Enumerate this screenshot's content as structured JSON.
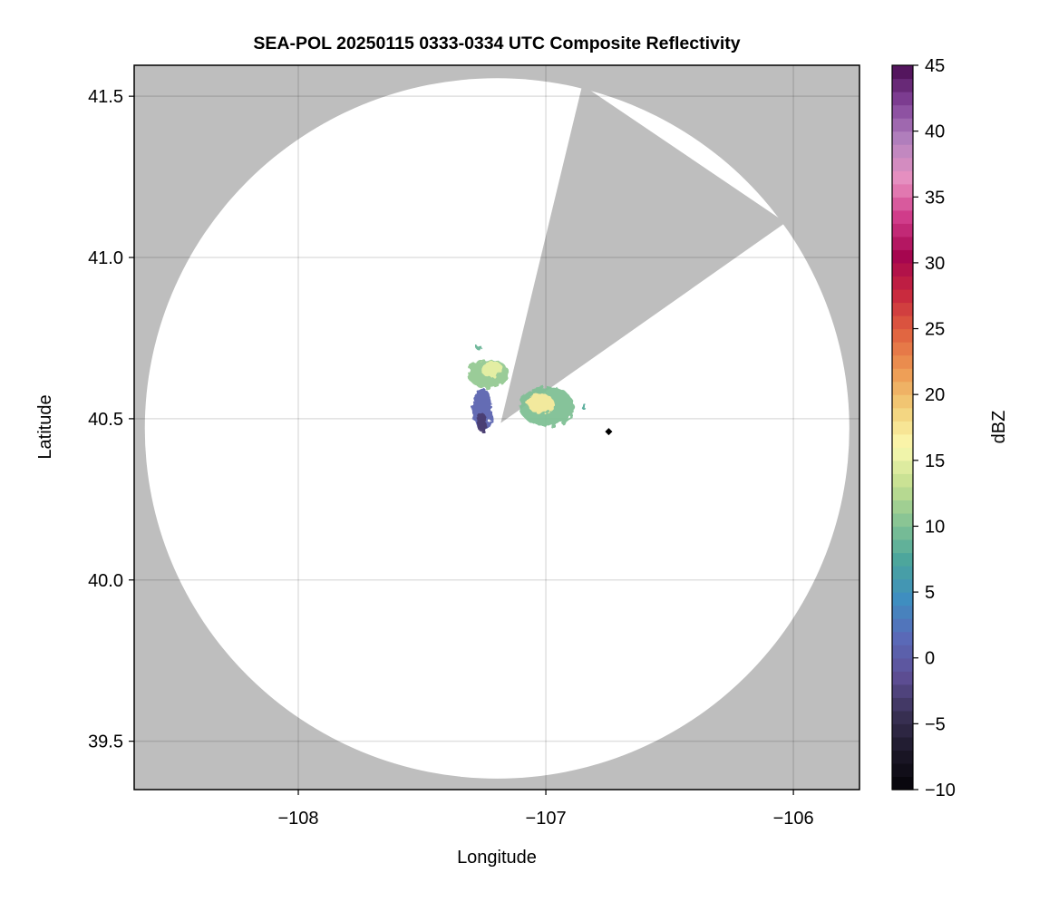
{
  "chart_data": {
    "type": "heatmap",
    "title": "SEA-POL 20250115 0333-0334 UTC Composite Reflectivity",
    "xlabel": "Longitude",
    "ylabel": "Latitude",
    "xlim": [
      -108.663,
      -105.733
    ],
    "ylim": [
      39.35,
      41.596
    ],
    "xticks": [
      -108,
      -107,
      -106
    ],
    "xtick_labels": [
      "−108",
      "−107",
      "−106"
    ],
    "yticks": [
      39.5,
      40.0,
      40.5,
      41.0,
      41.5
    ],
    "ytick_labels": [
      "39.5",
      "40.0",
      "40.5",
      "41.0",
      "41.5"
    ],
    "grid": true,
    "no_data_color": "#bebebe",
    "radar": {
      "lon": -107.197,
      "lat": 40.47,
      "range_deg_lon": 1.423,
      "range_deg_lat": 1.086,
      "blocked_azimuths_deg": [
        14,
        54
      ]
    },
    "echoes": [
      {
        "lon": -107.234,
        "lat": 40.64,
        "dlon": 0.085,
        "dlat": 0.045,
        "dbz": 11
      },
      {
        "lon": -107.22,
        "lat": 40.655,
        "dlon": 0.045,
        "dlat": 0.025,
        "dbz": 15
      },
      {
        "lon": -107.256,
        "lat": 40.53,
        "dlon": 0.04,
        "dlat": 0.065,
        "dbz": 1
      },
      {
        "lon": -107.26,
        "lat": 40.49,
        "dlon": 0.02,
        "dlat": 0.03,
        "dbz": -3
      },
      {
        "lon": -106.996,
        "lat": 40.538,
        "dlon": 0.11,
        "dlat": 0.062,
        "dbz": 10
      },
      {
        "lon": -107.02,
        "lat": 40.547,
        "dlon": 0.055,
        "dlat": 0.03,
        "dbz": 17
      },
      {
        "lon": -107.27,
        "lat": 40.72,
        "dlon": 0.012,
        "dlat": 0.008,
        "dbz": 9
      },
      {
        "lon": -106.85,
        "lat": 40.54,
        "dlon": 0.01,
        "dlat": 0.01,
        "dbz": 8
      }
    ],
    "marker": {
      "lon": -106.746,
      "lat": 40.46,
      "shape": "diamond",
      "color": "#000000"
    },
    "colorbar": {
      "label": "dBZ",
      "range": [
        -10,
        45
      ],
      "ticks": [
        -10,
        -5,
        0,
        5,
        10,
        15,
        20,
        25,
        30,
        35,
        40,
        45
      ],
      "tick_labels": [
        "−10",
        "−5",
        "0",
        "5",
        "10",
        "15",
        "20",
        "25",
        "30",
        "35",
        "40",
        "45"
      ],
      "colormap_stops": [
        "#050308",
        "#1c1828",
        "#3a3256",
        "#5e4f96",
        "#5a6ab8",
        "#3f8ec0",
        "#4aa59c",
        "#85c394",
        "#c4df90",
        "#fbf9b0",
        "#f2d07a",
        "#ed9852",
        "#e06240",
        "#c8283e",
        "#a6064f",
        "#cf3a88",
        "#e890c0",
        "#b585c0",
        "#84449a",
        "#4a0d52"
      ]
    }
  }
}
